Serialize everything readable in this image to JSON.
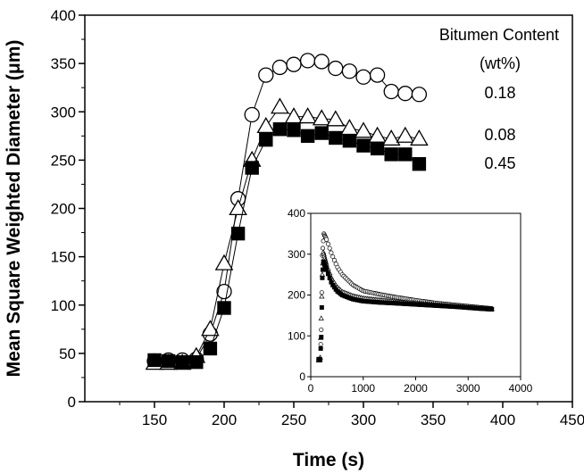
{
  "chart_data": [
    {
      "type": "scatter",
      "title": "",
      "xlabel": "Time (s)",
      "ylabel": "Mean Square Weighted Diameter (μm)",
      "xlim": [
        100,
        450
      ],
      "ylim": [
        0,
        400
      ],
      "x_ticks": [
        150,
        200,
        250,
        300,
        350,
        400,
        450
      ],
      "y_ticks": [
        0,
        50,
        100,
        150,
        200,
        250,
        300,
        350,
        400
      ],
      "grid": false,
      "legend": {
        "title_line1": "Bitumen Content",
        "title_line2": "(wt%)",
        "placement": "top-right",
        "entries": [
          "0.18",
          "0.08",
          "0.45"
        ]
      },
      "series": [
        {
          "name": "0.18",
          "marker": "open-circle",
          "color": "#000000",
          "x": [
            150,
            160,
            170,
            180,
            190,
            200,
            210,
            220,
            230,
            240,
            250,
            260,
            270,
            280,
            290,
            300,
            310,
            320,
            330,
            340
          ],
          "y": [
            42,
            43,
            43,
            44,
            70,
            114,
            210,
            297,
            338,
            346,
            349,
            353,
            352,
            345,
            342,
            336,
            338,
            321,
            319,
            318
          ]
        },
        {
          "name": "0.08",
          "marker": "open-triangle",
          "color": "#000000",
          "x": [
            150,
            160,
            170,
            180,
            190,
            200,
            210,
            220,
            230,
            240,
            250,
            260,
            270,
            280,
            290,
            300,
            310,
            320,
            330,
            340
          ],
          "y": [
            40,
            40,
            40,
            47,
            75,
            143,
            200,
            250,
            285,
            305,
            295,
            295,
            293,
            292,
            283,
            280,
            275,
            272,
            275,
            272
          ]
        },
        {
          "name": "0.45",
          "marker": "filled-square",
          "color": "#000000",
          "x": [
            150,
            160,
            170,
            180,
            190,
            200,
            210,
            220,
            230,
            240,
            250,
            260,
            270,
            280,
            290,
            300,
            310,
            320,
            330,
            340
          ],
          "y": [
            43,
            42,
            41,
            41,
            55,
            97,
            174,
            242,
            271,
            282,
            281,
            275,
            278,
            273,
            270,
            265,
            262,
            256,
            256,
            246
          ]
        }
      ]
    },
    {
      "type": "scatter",
      "title": "",
      "xlabel": "",
      "ylabel": "",
      "xlim": [
        0,
        4000
      ],
      "ylim": [
        0,
        400
      ],
      "x_ticks": [
        0,
        1000,
        2000,
        3000,
        4000
      ],
      "y_ticks": [
        0,
        100,
        200,
        300,
        400
      ],
      "grid": false,
      "placement": "inset-lower-right",
      "series": [
        {
          "name": "0.18",
          "marker": "open-circle",
          "curve": {
            "x": [
              150,
              180,
              200,
              220,
              250,
              300,
              400,
              500,
              600,
              800,
              1000,
              1300,
              1600,
              2000,
              2400,
              2800,
              3200,
              3450
            ],
            "y": [
              42,
              44,
              115,
              297,
              350,
              336,
              300,
              270,
              250,
              225,
              210,
              202,
              195,
              187,
              180,
              175,
              170,
              167
            ]
          }
        },
        {
          "name": "0.08",
          "marker": "open-triangle",
          "curve": {
            "x": [
              150,
              180,
              200,
              220,
              240,
              300,
              400,
              500,
              600,
              800,
              1000,
              1300,
              1600,
              2000,
              2400,
              2800,
              3200,
              3450
            ],
            "y": [
              40,
              47,
              143,
              250,
              305,
              275,
              240,
              220,
              208,
              198,
              192,
              188,
              184,
              180,
              176,
              172,
              168,
              166
            ]
          }
        },
        {
          "name": "0.45",
          "marker": "filled-square",
          "curve": {
            "x": [
              150,
              180,
              200,
              220,
              240,
              300,
              400,
              500,
              600,
              800,
              1000,
              1300,
              1600,
              2000,
              2400,
              2800,
              3200,
              3450
            ],
            "y": [
              43,
              41,
              97,
              242,
              282,
              262,
              228,
              210,
              200,
              190,
              185,
              182,
              180,
              177,
              174,
              171,
              167,
              165
            ]
          }
        }
      ]
    }
  ]
}
